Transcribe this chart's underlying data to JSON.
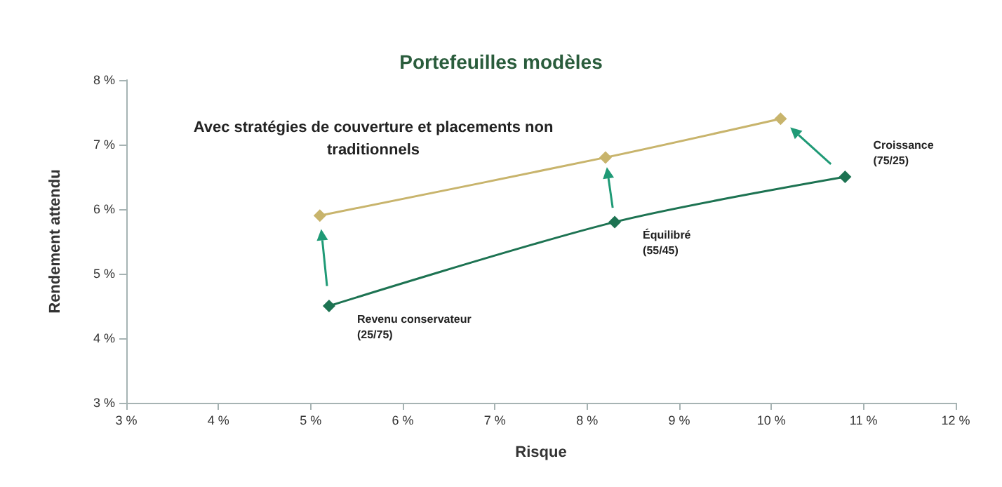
{
  "chart_data": {
    "type": "line",
    "title": "Portefeuilles modèles",
    "xlabel": "Risque",
    "ylabel": "Rendement attendu",
    "series": [
      {
        "color": "#1d7352",
        "values": [
          4.5,
          5.8,
          6.5
        ],
        "x": [
          5.2,
          8.3,
          10.8
        ]
      },
      {
        "color": "#c8b46c",
        "values": [
          5.9,
          6.8,
          7.4
        ],
        "x": [
          5.1,
          8.2,
          10.1
        ]
      }
    ],
    "marker": "diamond",
    "grid": false,
    "xlim": [
      3,
      12
    ],
    "xticks": [
      {
        "value": 3,
        "label": "3 %"
      },
      {
        "value": 4,
        "label": "4 %"
      },
      {
        "value": 5,
        "label": "5 %"
      },
      {
        "value": 6,
        "label": "6 %"
      },
      {
        "value": 7,
        "label": "7 %"
      },
      {
        "value": 8,
        "label": "8 %"
      },
      {
        "value": 9,
        "label": "9 %"
      },
      {
        "value": 10,
        "label": "10 %"
      },
      {
        "value": 11,
        "label": "11 %"
      },
      {
        "value": 12,
        "label": "12 %"
      }
    ],
    "ylim": [
      3,
      8
    ],
    "yticks": [
      {
        "value": 3,
        "label": "3 %"
      },
      {
        "value": 4,
        "label": "4 %"
      },
      {
        "value": 5,
        "label": "5 %"
      },
      {
        "value": 6,
        "label": "6 %"
      },
      {
        "value": 7,
        "label": "7 %"
      },
      {
        "value": 8,
        "label": "8 %"
      }
    ],
    "annotations": [
      "Avec stratégies de couverture et placements non\ntraditionnels",
      {
        "text": "Revenu conservateur\n(25/75)",
        "x": 5.2,
        "y": 4.5
      },
      {
        "text": "Équilibré\n(55/45)",
        "x": 8.3,
        "y": 5.8
      },
      {
        "text": "Croissance\n(75/25)",
        "x": 10.8,
        "y": 6.5
      }
    ]
  }
}
